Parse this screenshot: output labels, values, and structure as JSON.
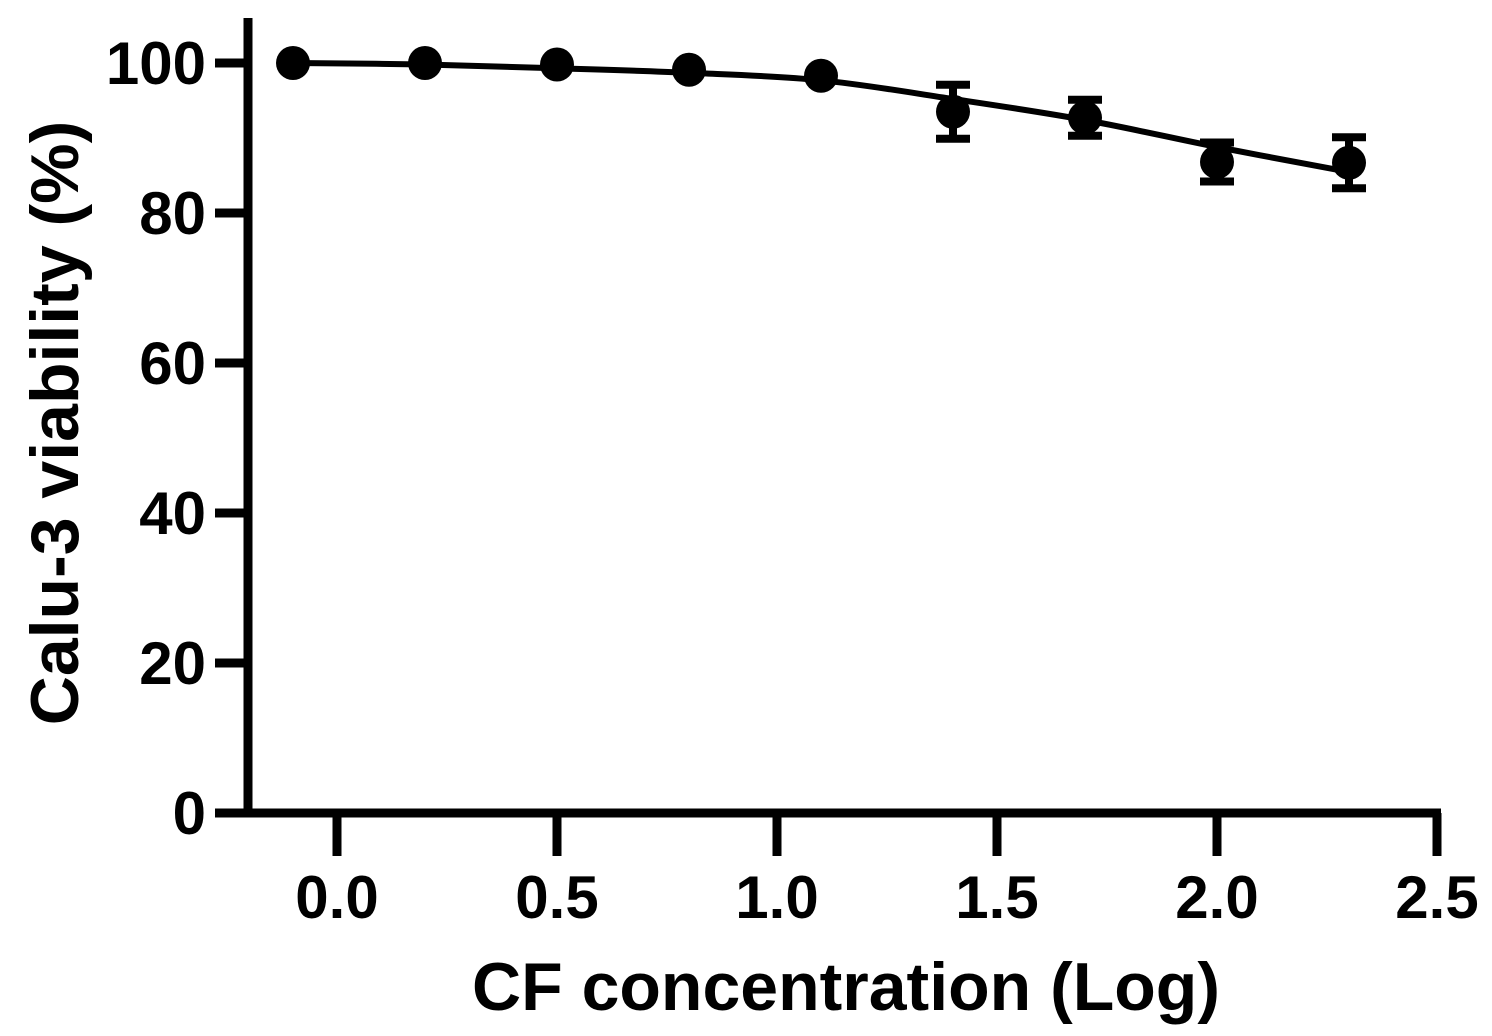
{
  "figure": {
    "background_color": "#ffffff",
    "ink_color": "#000000"
  },
  "chart_data": {
    "type": "scatter",
    "title": "",
    "xlabel": "CF concentration (Log)",
    "ylabel": "Calu-3 viability (%)",
    "x": [
      -0.1,
      0.2,
      0.5,
      0.8,
      1.1,
      1.4,
      1.7,
      2.0,
      2.3
    ],
    "y": [
      100.0,
      100.0,
      99.8,
      99.1,
      98.3,
      93.5,
      92.7,
      86.8,
      86.7
    ],
    "yerr": [
      0,
      0,
      0,
      0,
      0,
      3.6,
      2.4,
      2.6,
      3.4
    ],
    "fit_curve": {
      "x": [
        -0.1,
        0.2,
        0.5,
        0.8,
        1.1,
        1.4,
        1.7,
        2.0,
        2.28
      ],
      "y": [
        100.0,
        99.8,
        99.3,
        98.7,
        97.7,
        95.2,
        92.4,
        88.8,
        85.7
      ]
    },
    "xticks": {
      "values": [
        0.0,
        0.5,
        1.0,
        1.5,
        2.0,
        2.5
      ],
      "labels": [
        "0.0",
        "0.5",
        "1.0",
        "1.5",
        "2.0",
        "2.5"
      ]
    },
    "yticks": {
      "values": [
        0,
        20,
        40,
        60,
        80,
        100
      ],
      "labels": [
        "0",
        "20",
        "40",
        "60",
        "80",
        "100"
      ]
    },
    "xlim": [
      -0.2,
      2.5
    ],
    "ylim": [
      0,
      106
    ],
    "grid": false,
    "legend": null,
    "marker": {
      "shape": "filled-circle",
      "color": "#000000"
    },
    "line": {
      "style": "solid",
      "color": "#000000"
    }
  }
}
